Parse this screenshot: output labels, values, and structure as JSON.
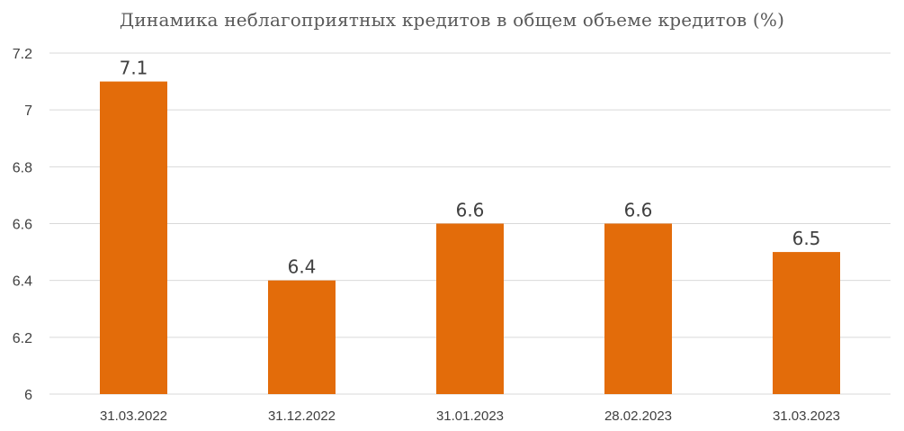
{
  "chart_data": {
    "type": "bar",
    "title": "Динамика неблагоприятных кредитов в общем объеме кредитов (%)",
    "categories": [
      "31.03.2022",
      "31.12.2022",
      "31.01.2023",
      "28.02.2023",
      "31.03.2023"
    ],
    "values": [
      7.1,
      6.4,
      6.6,
      6.6,
      6.5
    ],
    "data_labels": [
      "7.1",
      "6.4",
      "6.6",
      "6.6",
      "6.5"
    ],
    "y_ticks": [
      "6",
      "6.2",
      "6.4",
      "6.6",
      "6.8",
      "7",
      "7.2"
    ],
    "ylim": [
      6,
      7.2
    ],
    "xlabel": "",
    "ylabel": "",
    "grid": true,
    "legend": "none",
    "bar_color": "#E36C0A",
    "grid_color": "#D9D9D9"
  }
}
